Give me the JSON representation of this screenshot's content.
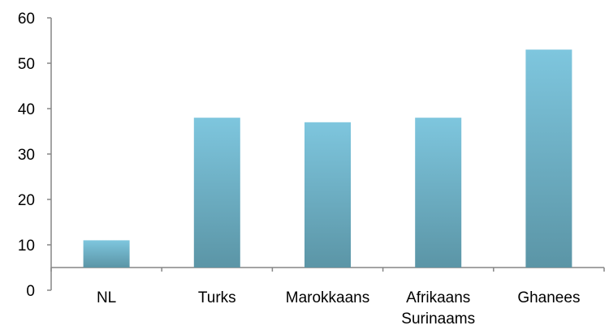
{
  "chart_data": {
    "type": "bar",
    "categories": [
      "NL",
      "Turks",
      "Marokkaans",
      "Afrikaans Surinaams",
      "Ghanees"
    ],
    "category_lines": [
      [
        "NL"
      ],
      [
        "Turks"
      ],
      [
        "Marokkaans"
      ],
      [
        "Afrikaans",
        "Surinaams"
      ],
      [
        "Ghanees"
      ]
    ],
    "values": [
      11,
      38,
      37,
      38,
      53
    ],
    "baseline": 5,
    "ylim": [
      0,
      60
    ],
    "yticks": [
      0,
      10,
      20,
      30,
      40,
      50,
      60
    ],
    "xlabel": "",
    "ylabel": "",
    "title": "",
    "grid": false,
    "legend": "none",
    "colors": {
      "bar_top": "#7ec6de",
      "bar_bottom": "#5b95a6",
      "axis": "#868686"
    }
  }
}
